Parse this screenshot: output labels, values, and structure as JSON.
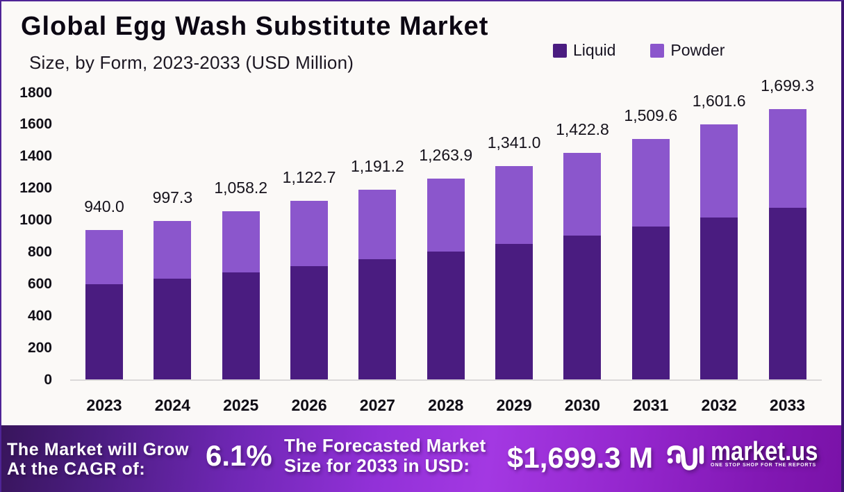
{
  "header": {
    "title": "Global Egg Wash Substitute Market",
    "subtitle": "Size, by Form, 2023-2033 (USD Million)"
  },
  "colors": {
    "liquid": "#4a1c80",
    "powder": "#8b56cc",
    "background": "#fbf9f7",
    "frame_border": "#4f2496",
    "banner_gradient_start": "#38155c",
    "banner_gradient_mid": "#a338e2",
    "banner_gradient_end": "#7a12a8"
  },
  "chart_data": {
    "type": "bar",
    "stacked": true,
    "title": "Global Egg Wash Substitute Market",
    "subtitle": "Size, by Form, 2023-2033 (USD Million)",
    "categories": [
      "2023",
      "2024",
      "2025",
      "2026",
      "2027",
      "2028",
      "2029",
      "2030",
      "2031",
      "2032",
      "2033"
    ],
    "series": [
      {
        "name": "Liquid",
        "color": "#4a1c80",
        "values": [
          597.8,
          634.3,
          673.0,
          714.0,
          757.6,
          803.8,
          852.9,
          904.9,
          960.1,
          1018.6,
          1080.8
        ]
      },
      {
        "name": "Powder",
        "color": "#8b56cc",
        "values": [
          342.2,
          363.0,
          385.2,
          408.7,
          433.6,
          460.1,
          488.1,
          517.9,
          549.5,
          583.0,
          618.5
        ]
      }
    ],
    "totals": [
      940.0,
      997.3,
      1058.2,
      1122.7,
      1191.2,
      1263.9,
      1341.0,
      1422.8,
      1509.6,
      1601.6,
      1699.3
    ],
    "total_labels": [
      "940.0",
      "997.3",
      "1,058.2",
      "1,122.7",
      "1,191.2",
      "1,263.9",
      "1,341.0",
      "1,422.8",
      "1,509.6",
      "1,601.6",
      "1,699.3"
    ],
    "xlabel": "",
    "ylabel": "",
    "ylim": [
      0,
      1800
    ],
    "yticks": [
      0,
      200,
      400,
      600,
      800,
      1000,
      1200,
      1400,
      1600,
      1800
    ],
    "legend": [
      "Liquid",
      "Powder"
    ],
    "legend_position": "top-right",
    "grid": false
  },
  "banner": {
    "cagr_label": "The Market will Grow\nAt the CAGR of:",
    "cagr_value": "6.1%",
    "forecast_label": "The Forecasted Market\nSize for 2033 in USD:",
    "forecast_value": "$1,699.3 M",
    "brand_name": "market.us",
    "brand_tagline": "ONE STOP SHOP FOR THE REPORTS"
  }
}
